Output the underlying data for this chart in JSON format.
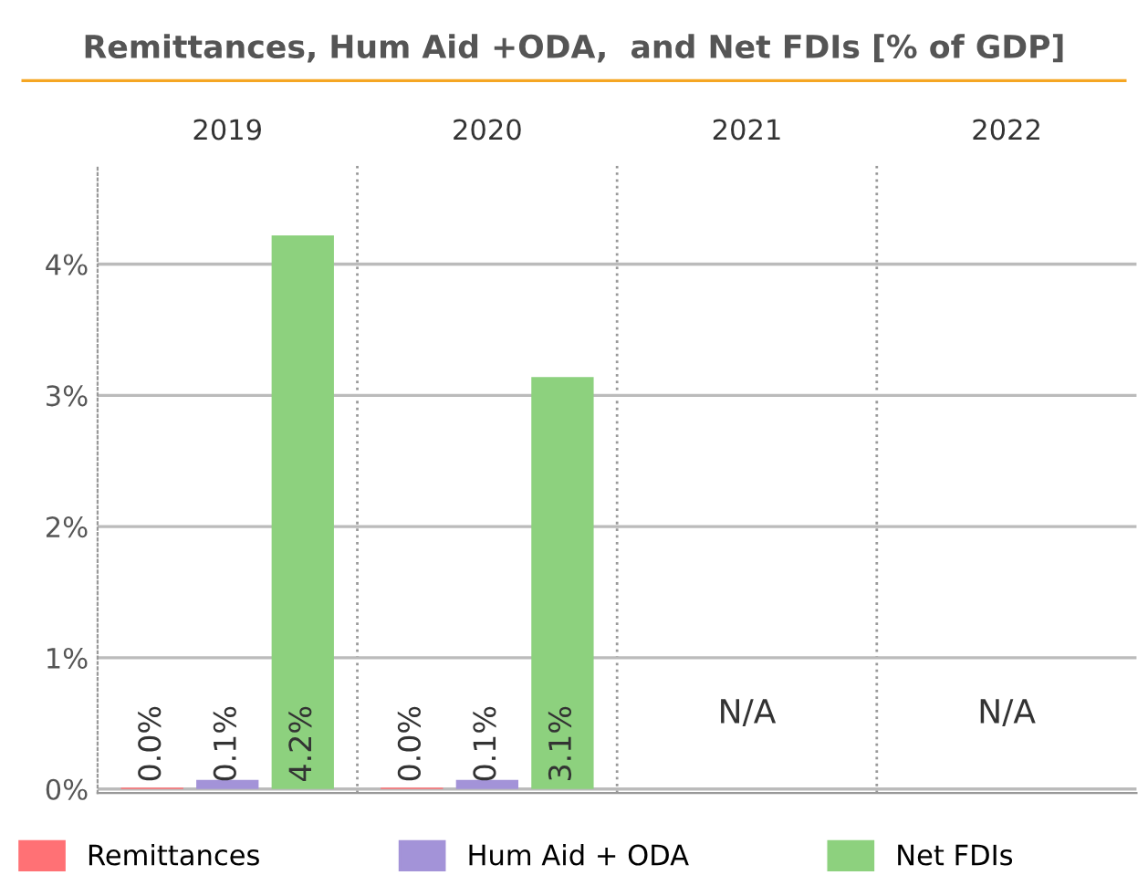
{
  "chart_data": {
    "type": "bar",
    "title": "Remittances, Hum Aid +ODA,  and Net FDIs [% of GDP]",
    "categories": [
      "2019",
      "2020",
      "2021",
      "2022"
    ],
    "series": [
      {
        "name": "Remittances",
        "color": "#ff7175",
        "values": [
          0.01,
          0.01,
          null,
          null
        ],
        "value_labels": [
          "0.0%",
          "0.0%",
          null,
          null
        ]
      },
      {
        "name": "Hum Aid + ODA",
        "color": "#a393d8",
        "values": [
          0.07,
          0.07,
          null,
          null
        ],
        "value_labels": [
          "0.1%",
          "0.1%",
          null,
          null
        ]
      },
      {
        "name": "Net FDIs",
        "color": "#8dd17e",
        "values": [
          4.22,
          3.14,
          null,
          null
        ],
        "value_labels": [
          "4.2%",
          "3.1%",
          null,
          null
        ]
      }
    ],
    "annotations": [
      "N/A",
      "N/A"
    ],
    "ylim": [
      -0.03,
      4.75
    ],
    "yticks": [
      {
        "value": 0,
        "label": "0%"
      },
      {
        "value": 1,
        "label": "1%"
      },
      {
        "value": 2,
        "label": "2%"
      },
      {
        "value": 3,
        "label": "3%"
      },
      {
        "value": 4,
        "label": "4%"
      }
    ],
    "grid": "y",
    "legend": "bottom"
  }
}
